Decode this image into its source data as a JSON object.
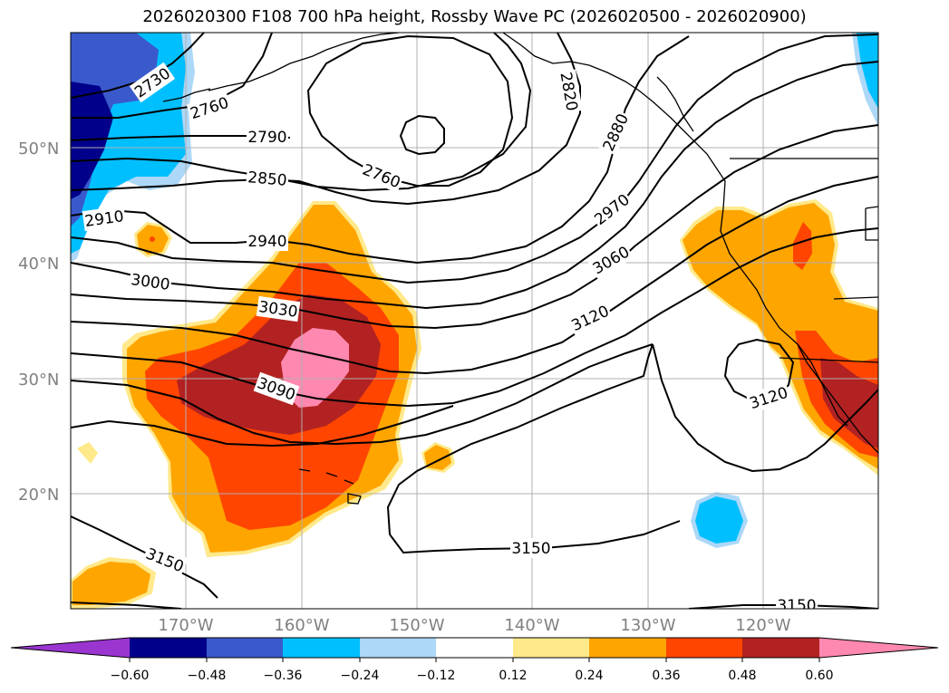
{
  "title": "2026020300 F108 700 hPa height, Rossby Wave PC (2026020500 - 2026020900)",
  "axes": {
    "lat_labels": [
      "50°N",
      "40°N",
      "30°N",
      "20°N"
    ],
    "lon_labels": [
      "170°W",
      "160°W",
      "150°W",
      "140°W",
      "130°W",
      "120°W"
    ]
  },
  "contour_labels": [
    "2730",
    "2760",
    "2790",
    "2850",
    "2910",
    "2940",
    "3000",
    "3030",
    "3090",
    "2760",
    "2820",
    "2880",
    "2970",
    "3060",
    "3120",
    "3120",
    "3150",
    "3150",
    "3150"
  ],
  "colorbar": {
    "ticks": [
      "−0.60",
      "−0.48",
      "−0.36",
      "−0.24",
      "−0.12",
      "0.12",
      "0.24",
      "0.36",
      "0.48",
      "0.60"
    ],
    "colors": [
      "#9a35d0",
      "#00008b",
      "#3a5acc",
      "#00bfff",
      "#add8f7",
      "#ffffff",
      "#ffe98a",
      "#ffa500",
      "#ff4500",
      "#b22222",
      "#ff88b0"
    ]
  }
}
